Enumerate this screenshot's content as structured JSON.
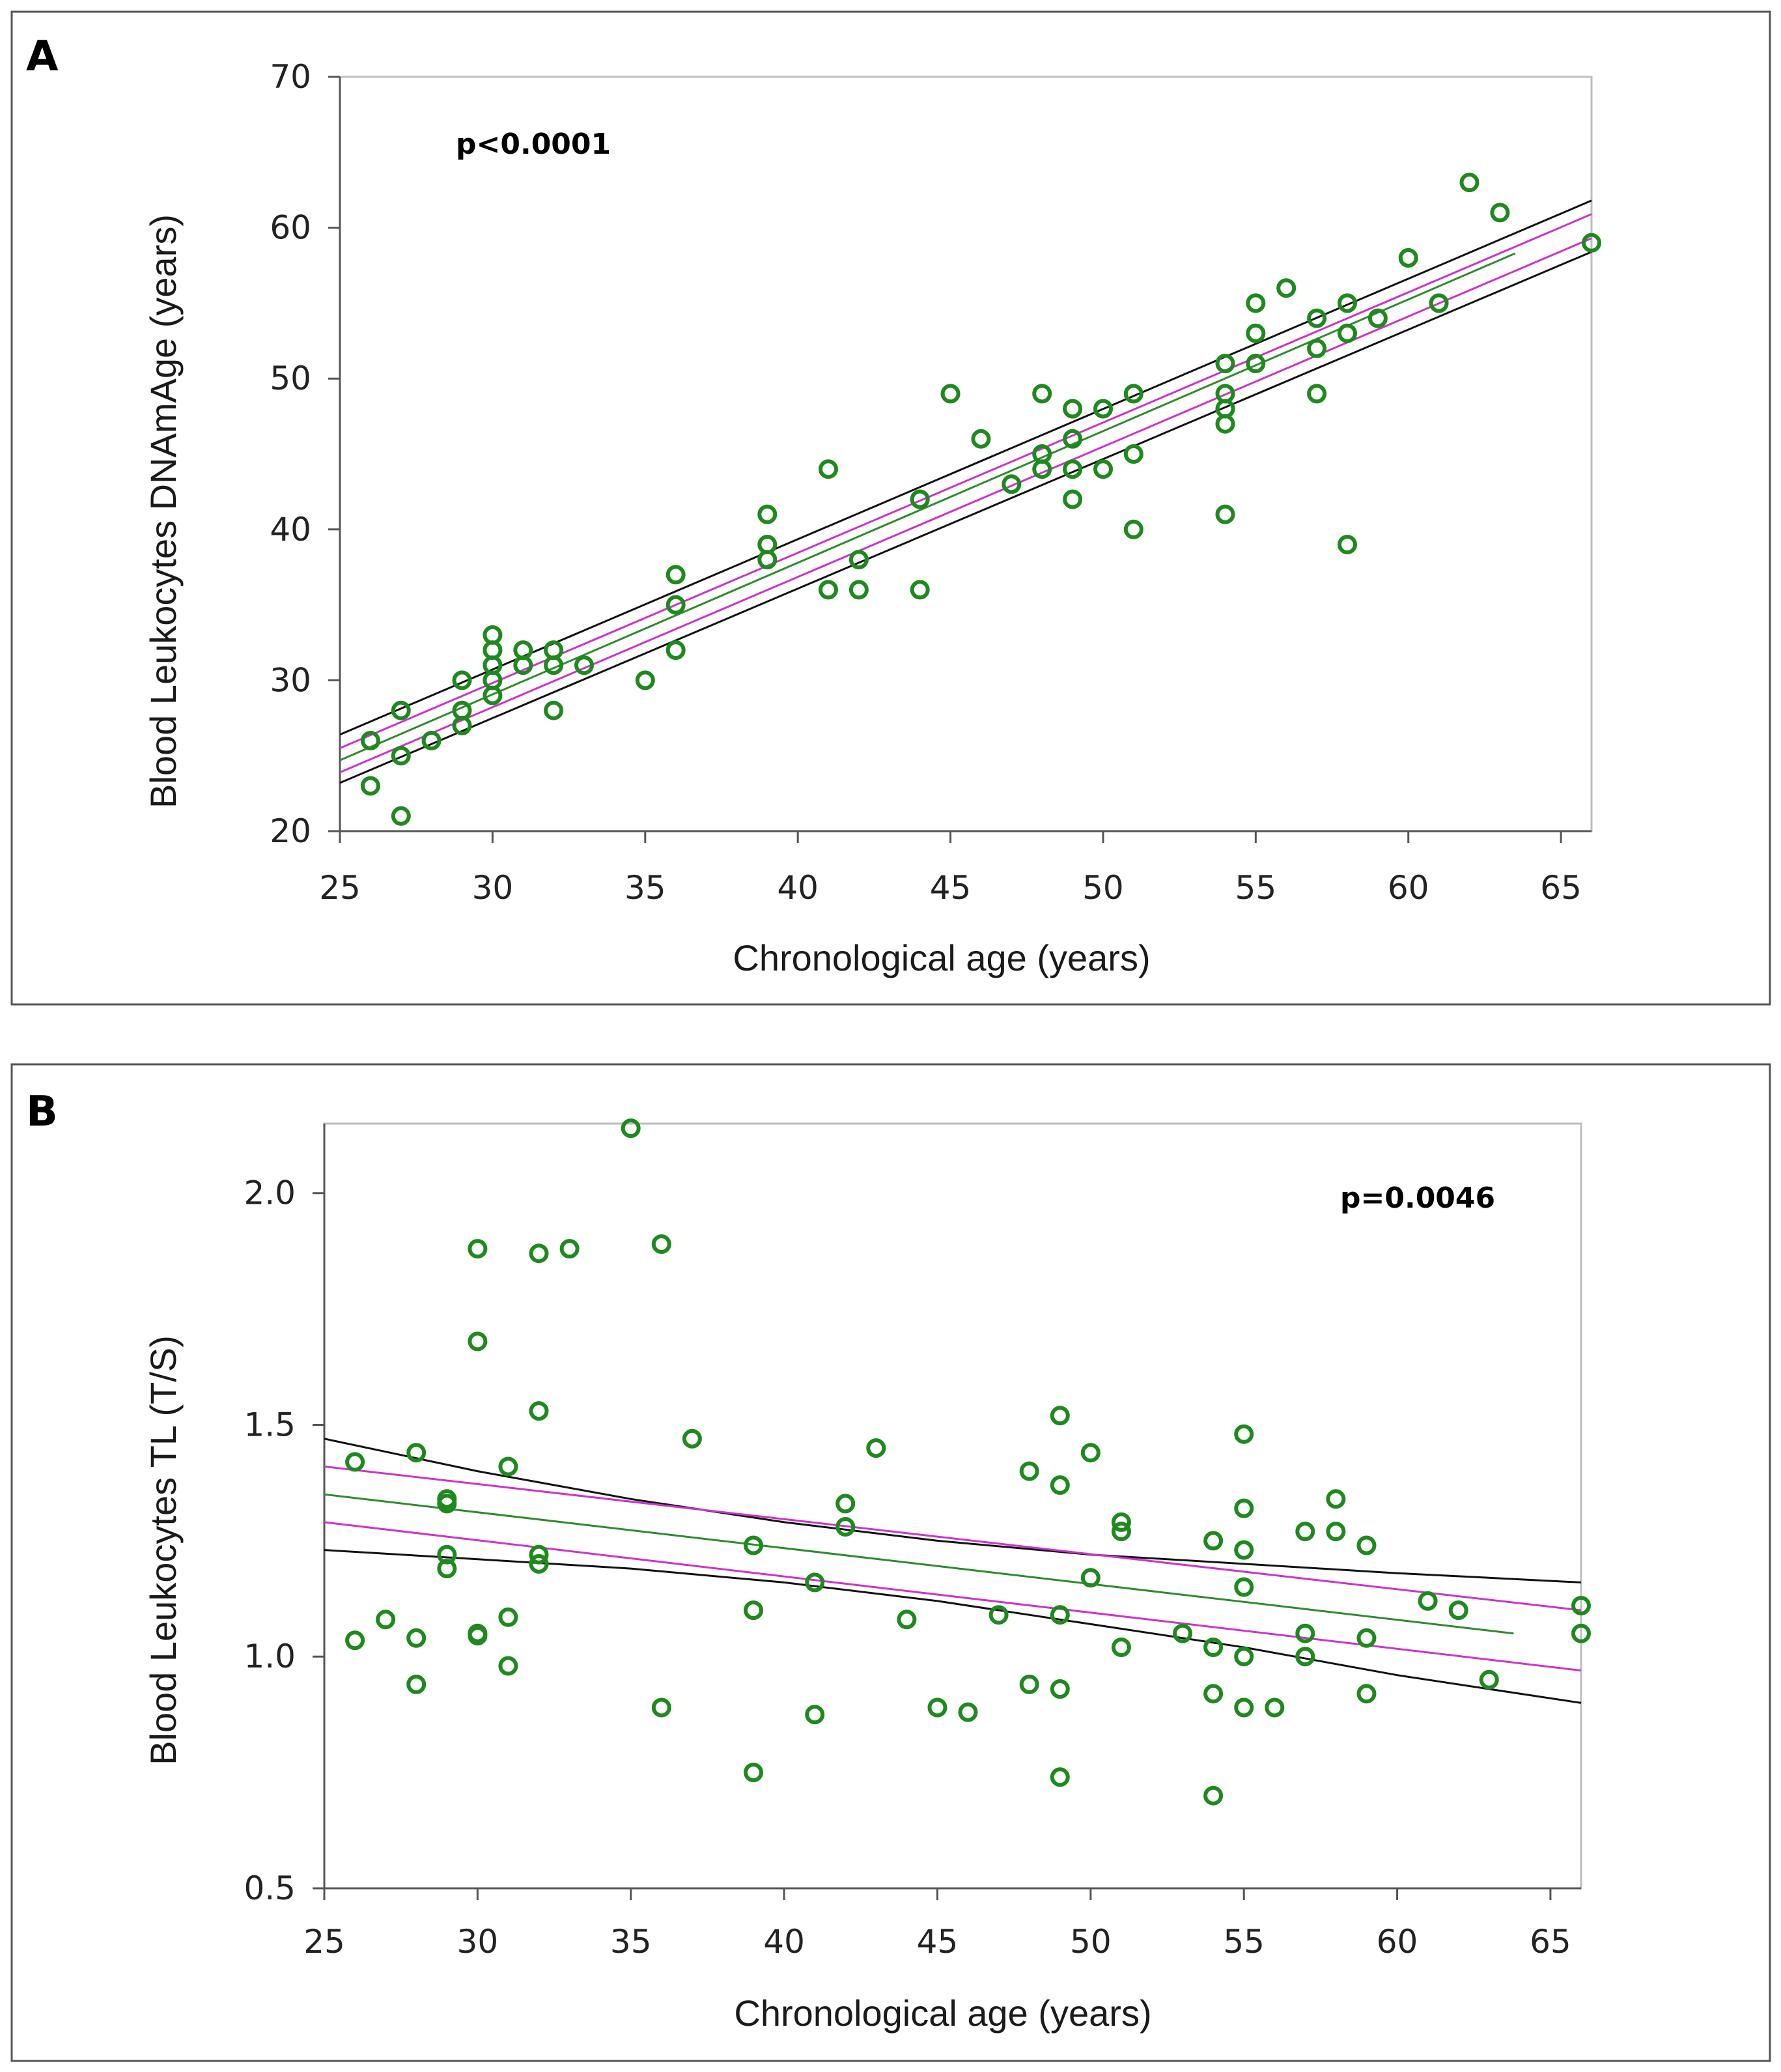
{
  "colors": {
    "point": "#1e8a1e",
    "fit": "#2e8b2e",
    "ci_inner": "#cc33cc",
    "ci_outer": "#111111",
    "panel_border": "#555555"
  },
  "chart_data": [
    {
      "panel_label": "A",
      "type": "scatter",
      "xlabel": "Chronological age (years)",
      "ylabel": "Blood Leukocytes DNAmAge (years)",
      "xlim": [
        25,
        66
      ],
      "ylim": [
        20,
        70
      ],
      "xticks": [
        25,
        30,
        35,
        40,
        45,
        50,
        55,
        60,
        65
      ],
      "yticks": [
        20,
        30,
        40,
        50,
        60,
        70
      ],
      "ytick_labels": [
        "20",
        "30",
        "40",
        "50",
        "60",
        "70"
      ],
      "annotation": "p<0.0001",
      "points": [
        [
          26,
          26
        ],
        [
          26,
          23
        ],
        [
          27,
          28
        ],
        [
          27,
          25
        ],
        [
          27,
          21
        ],
        [
          28,
          26
        ],
        [
          29,
          30
        ],
        [
          29,
          28
        ],
        [
          29,
          27
        ],
        [
          30,
          33
        ],
        [
          30,
          32
        ],
        [
          30,
          31
        ],
        [
          30,
          30
        ],
        [
          30,
          29
        ],
        [
          31,
          32
        ],
        [
          31,
          31
        ],
        [
          32,
          32
        ],
        [
          32,
          31
        ],
        [
          32,
          28
        ],
        [
          33,
          31
        ],
        [
          35,
          30
        ],
        [
          36,
          37
        ],
        [
          36,
          35
        ],
        [
          36,
          32
        ],
        [
          39,
          41
        ],
        [
          39,
          39
        ],
        [
          39,
          38
        ],
        [
          41,
          44
        ],
        [
          41,
          36
        ],
        [
          42,
          38
        ],
        [
          42,
          36
        ],
        [
          44,
          42
        ],
        [
          44,
          36
        ],
        [
          45,
          49
        ],
        [
          46,
          46
        ],
        [
          47,
          43
        ],
        [
          48,
          49
        ],
        [
          48,
          45
        ],
        [
          48,
          44
        ],
        [
          49,
          48
        ],
        [
          49,
          46
        ],
        [
          49,
          44
        ],
        [
          49,
          42
        ],
        [
          50,
          48
        ],
        [
          50,
          44
        ],
        [
          51,
          49
        ],
        [
          51,
          45
        ],
        [
          51,
          40
        ],
        [
          54,
          51
        ],
        [
          54,
          49
        ],
        [
          54,
          48
        ],
        [
          54,
          47
        ],
        [
          54,
          41
        ],
        [
          55,
          55
        ],
        [
          55,
          53
        ],
        [
          55,
          51
        ],
        [
          56,
          56
        ],
        [
          57,
          54
        ],
        [
          57,
          52
        ],
        [
          57,
          49
        ],
        [
          58,
          55
        ],
        [
          58,
          53
        ],
        [
          58,
          39
        ],
        [
          59,
          54
        ],
        [
          60,
          58
        ],
        [
          61,
          55
        ],
        [
          62,
          63
        ],
        [
          63,
          61
        ],
        [
          66,
          59
        ]
      ],
      "fit": {
        "x": [
          25,
          63.5
        ],
        "y": [
          24.7,
          58.3
        ]
      },
      "ci_inner": {
        "upper": {
          "x": [
            25,
            66
          ],
          "y": [
            25.5,
            60.9
          ]
        },
        "lower": {
          "x": [
            25,
            66
          ],
          "y": [
            23.9,
            59.3
          ]
        }
      },
      "ci_outer": {
        "upper": {
          "x": [
            25,
            66
          ],
          "y": [
            26.4,
            61.8
          ]
        },
        "lower": {
          "x": [
            25,
            66
          ],
          "y": [
            23.2,
            58.4
          ]
        }
      }
    },
    {
      "panel_label": "B",
      "type": "scatter",
      "xlabel": "Chronological age (years)",
      "ylabel": "Blood Leukocytes TL (T/S)",
      "xlim": [
        25,
        66
      ],
      "ylim": [
        0.5,
        2.15
      ],
      "xticks": [
        25,
        30,
        35,
        40,
        45,
        50,
        55,
        60,
        65
      ],
      "yticks": [
        0.5,
        1.0,
        1.5,
        2.0
      ],
      "ytick_labels": [
        "0.5",
        "1.0",
        "1.5",
        "2.0"
      ],
      "annotation": "p=0.0046",
      "points": [
        [
          26,
          1.42
        ],
        [
          26,
          1.035
        ],
        [
          27,
          1.08
        ],
        [
          28,
          1.44
        ],
        [
          28,
          1.04
        ],
        [
          28,
          0.94
        ],
        [
          29,
          1.34
        ],
        [
          29,
          1.33
        ],
        [
          29,
          1.22
        ],
        [
          29,
          1.19
        ],
        [
          30,
          1.88
        ],
        [
          30,
          1.68
        ],
        [
          30,
          1.05
        ],
        [
          30,
          1.045
        ],
        [
          31,
          1.41
        ],
        [
          31,
          1.085
        ],
        [
          31,
          0.98
        ],
        [
          32,
          1.87
        ],
        [
          32,
          1.53
        ],
        [
          32,
          1.22
        ],
        [
          32,
          1.2
        ],
        [
          33,
          1.88
        ],
        [
          35,
          2.14
        ],
        [
          36,
          1.89
        ],
        [
          36,
          0.89
        ],
        [
          37,
          1.47
        ],
        [
          39,
          1.24
        ],
        [
          39,
          1.1
        ],
        [
          39,
          0.75
        ],
        [
          41,
          1.16
        ],
        [
          41,
          0.875
        ],
        [
          42,
          1.33
        ],
        [
          42,
          1.28
        ],
        [
          43,
          1.45
        ],
        [
          44,
          1.08
        ],
        [
          45,
          0.89
        ],
        [
          46,
          0.88
        ],
        [
          47,
          1.09
        ],
        [
          48,
          1.4
        ],
        [
          48,
          0.94
        ],
        [
          49,
          1.52
        ],
        [
          49,
          1.37
        ],
        [
          49,
          1.09
        ],
        [
          49,
          0.93
        ],
        [
          49,
          0.74
        ],
        [
          50,
          1.44
        ],
        [
          50,
          1.17
        ],
        [
          51,
          1.29
        ],
        [
          51,
          1.27
        ],
        [
          51,
          1.02
        ],
        [
          53,
          1.05
        ],
        [
          54,
          1.25
        ],
        [
          54,
          1.02
        ],
        [
          54,
          0.92
        ],
        [
          54,
          0.7
        ],
        [
          55,
          1.48
        ],
        [
          55,
          1.32
        ],
        [
          55,
          1.23
        ],
        [
          55,
          1.15
        ],
        [
          55,
          1.0
        ],
        [
          55,
          0.89
        ],
        [
          56,
          0.89
        ],
        [
          57,
          1.27
        ],
        [
          57,
          1.05
        ],
        [
          57,
          1.0
        ],
        [
          57,
          1.0
        ],
        [
          58,
          1.34
        ],
        [
          58,
          1.27
        ],
        [
          59,
          1.24
        ],
        [
          59,
          1.04
        ],
        [
          59,
          0.92
        ],
        [
          61,
          1.12
        ],
        [
          62,
          1.1
        ],
        [
          63,
          0.95
        ],
        [
          66,
          1.11
        ],
        [
          66,
          1.05
        ]
      ],
      "fit": {
        "x": [
          25,
          63.8
        ],
        "y": [
          1.35,
          1.05
        ]
      },
      "ci_inner": {
        "upper": {
          "x": [
            25,
            66
          ],
          "y": [
            1.41,
            1.1
          ]
        },
        "lower": {
          "x": [
            25,
            66
          ],
          "y": [
            1.29,
            0.97
          ]
        }
      },
      "ci_outer": {
        "upper": {
          "x": [
            25,
            30,
            35,
            40,
            45,
            50,
            55,
            60,
            66
          ],
          "y": [
            1.47,
            1.4,
            1.34,
            1.29,
            1.25,
            1.22,
            1.2,
            1.18,
            1.16
          ]
        },
        "lower": {
          "x": [
            25,
            30,
            35,
            40,
            45,
            50,
            55,
            60,
            66
          ],
          "y": [
            1.23,
            1.21,
            1.19,
            1.16,
            1.12,
            1.07,
            1.02,
            0.96,
            0.9
          ]
        }
      }
    }
  ]
}
